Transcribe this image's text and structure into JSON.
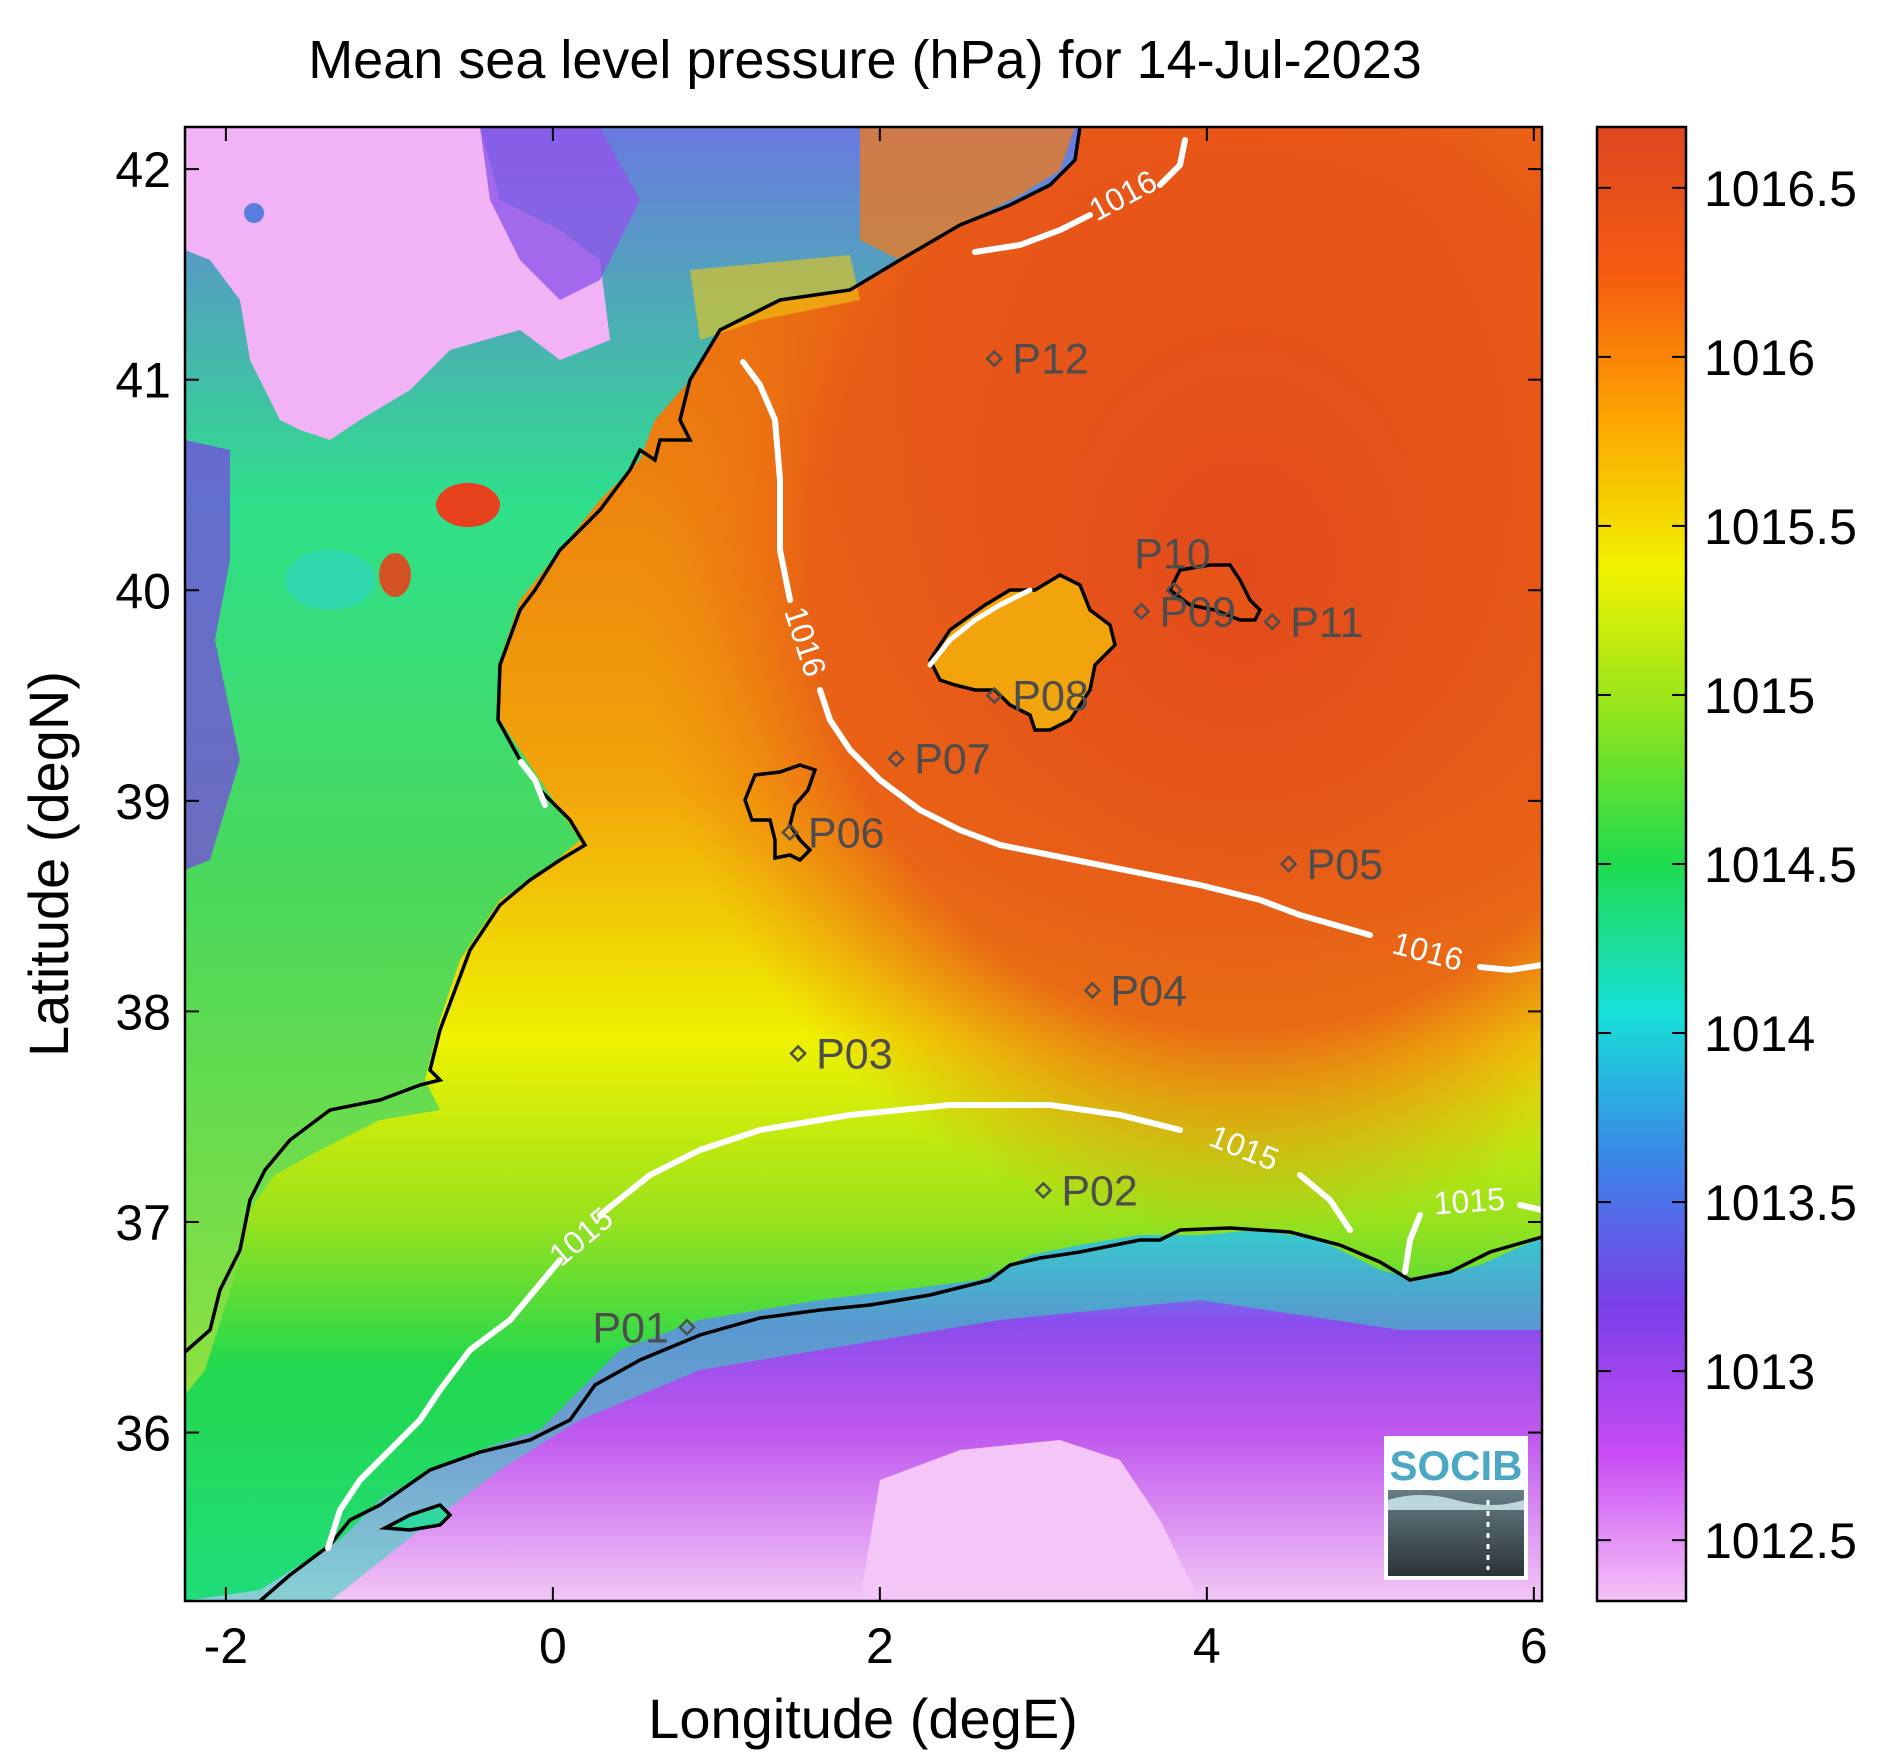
{
  "title": "Mean sea level pressure (hPa) for 14-Jul-2023",
  "x_axis": {
    "label": "Longitude (degE)",
    "min": -2.25,
    "max": 6.05,
    "ticks": [
      -2,
      0,
      2,
      4,
      6
    ],
    "tick_labels": [
      "-2",
      "0",
      "2",
      "4",
      "6"
    ]
  },
  "y_axis": {
    "label": "Latitude (degN)",
    "min": 35.2,
    "max": 42.2,
    "ticks": [
      36,
      37,
      38,
      39,
      40,
      41,
      42
    ],
    "tick_labels": [
      "36",
      "37",
      "38",
      "39",
      "40",
      "41",
      "42"
    ]
  },
  "colorbar": {
    "min": 1012.32,
    "max": 1016.68,
    "ticks": [
      1012.5,
      1013,
      1013.5,
      1014,
      1014.5,
      1015,
      1015.5,
      1016,
      1016.5
    ],
    "tick_labels": [
      "1012.5",
      "1013",
      "1013.5",
      "1014",
      "1014.5",
      "1015",
      "1015.5",
      "1016",
      "1016.5"
    ],
    "colormap": [
      "#f6c3f8",
      "#c84cf4",
      "#7a3fe8",
      "#3b86e8",
      "#17e0d8",
      "#1fdc4e",
      "#8ee41d",
      "#f2f200",
      "#fca600",
      "#f65c10",
      "#dd4722"
    ]
  },
  "contour_labels": [
    "1016",
    "1016",
    "1016",
    "1015",
    "1015",
    "1015"
  ],
  "stations": [
    {
      "name": "P01",
      "lon": 0.82,
      "lat": 36.5
    },
    {
      "name": "P02",
      "lon": 3.0,
      "lat": 37.15
    },
    {
      "name": "P03",
      "lon": 1.5,
      "lat": 37.8
    },
    {
      "name": "P04",
      "lon": 3.3,
      "lat": 38.1
    },
    {
      "name": "P05",
      "lon": 4.5,
      "lat": 38.7
    },
    {
      "name": "P06",
      "lon": 1.45,
      "lat": 38.85
    },
    {
      "name": "P07",
      "lon": 2.1,
      "lat": 39.2
    },
    {
      "name": "P08",
      "lon": 2.7,
      "lat": 39.5
    },
    {
      "name": "P09",
      "lon": 3.6,
      "lat": 39.9
    },
    {
      "name": "P10",
      "lon": 3.8,
      "lat": 40.0
    },
    {
      "name": "P11",
      "lon": 4.4,
      "lat": 39.85
    },
    {
      "name": "P12",
      "lon": 2.7,
      "lat": 41.1
    }
  ],
  "logo": {
    "text": "SOCIB"
  }
}
